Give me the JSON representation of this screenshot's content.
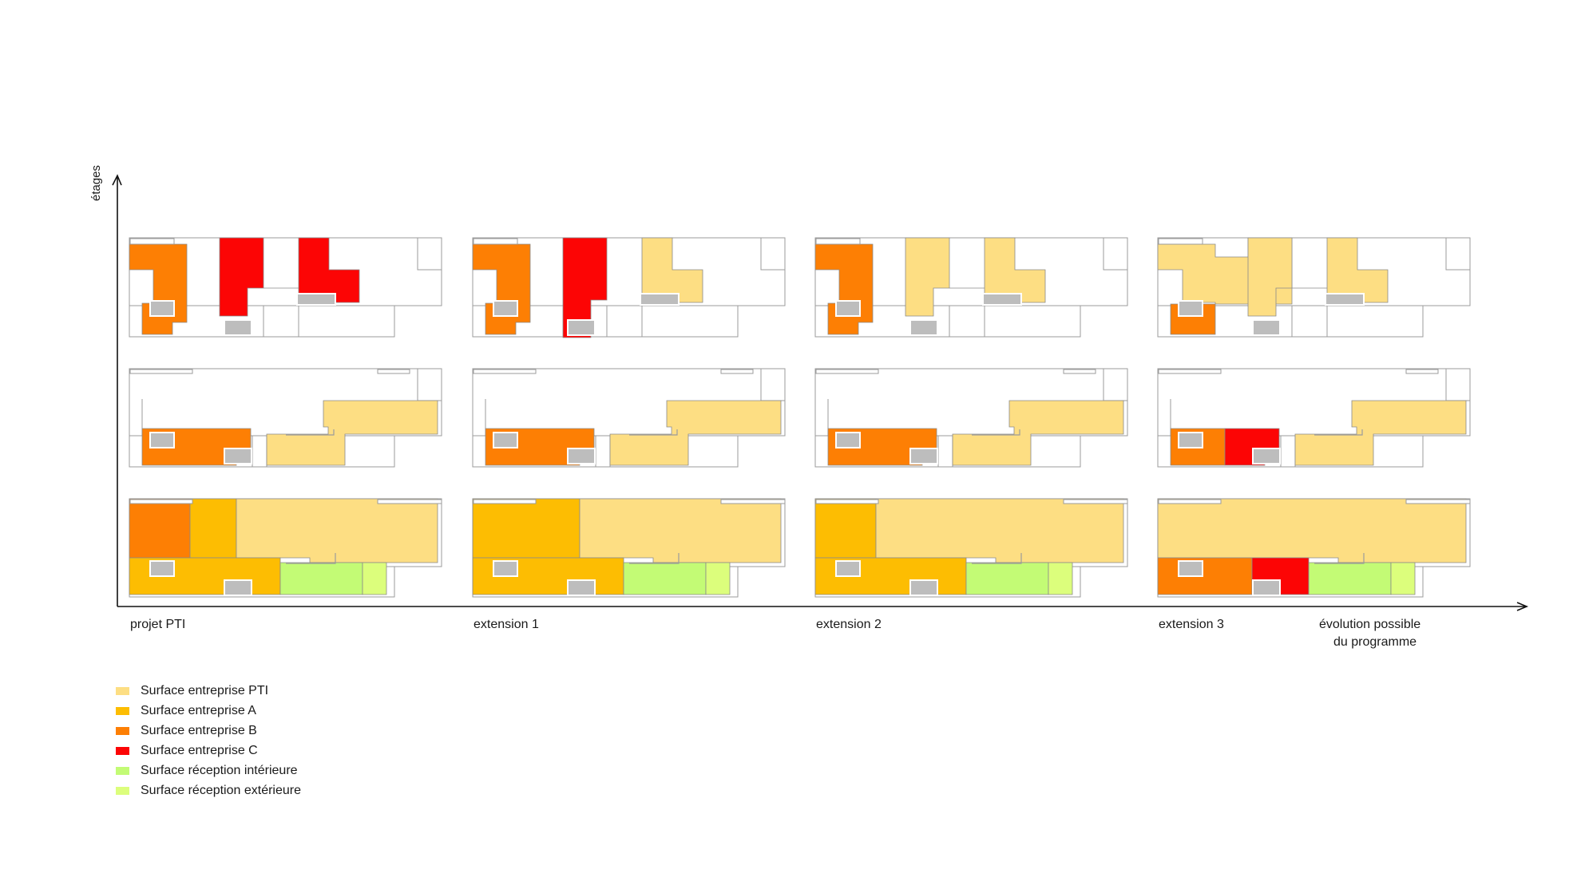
{
  "axis": {
    "y_label": "étages"
  },
  "colors": {
    "pti": "#FDDE83",
    "a": "#FDBD02",
    "b": "#FD7F04",
    "c": "#FC0505",
    "rec_int": "#C3FB75",
    "rec_ext": "#DCFE7C",
    "core": "#BDBDBD",
    "outline": "#9B9B9B"
  },
  "columns": [
    {
      "label": "projet PTI",
      "floors": {
        "top": [
          {
            "shape": "L",
            "color": "b"
          },
          {
            "shape": "topA",
            "color": "c"
          },
          {
            "shape": "topB",
            "color": "c"
          }
        ],
        "mid": [
          {
            "shape": "m1",
            "color": "b"
          },
          {
            "shape": "m2",
            "color": "pti"
          }
        ],
        "bot": [
          {
            "shape": "b1",
            "color": "b"
          },
          {
            "shape": "b2",
            "color": "a"
          },
          {
            "shape": "b3",
            "color": "pti"
          },
          {
            "shape": "b4",
            "color": "a"
          },
          {
            "shape": "b5",
            "color": "rec_int"
          },
          {
            "shape": "b6",
            "color": "rec_ext"
          }
        ]
      }
    },
    {
      "label": "extension 1",
      "floors": {
        "top": [
          {
            "shape": "L",
            "color": "b"
          },
          {
            "shape": "topA2",
            "color": "c"
          },
          {
            "shape": "topB2",
            "color": "pti"
          }
        ],
        "mid": [
          {
            "shape": "m1",
            "color": "b"
          },
          {
            "shape": "m2",
            "color": "pti"
          }
        ],
        "bot": [
          {
            "shape": "b12",
            "color": "a"
          },
          {
            "shape": "b3",
            "color": "pti"
          },
          {
            "shape": "b4",
            "color": "a"
          },
          {
            "shape": "b5",
            "color": "rec_int"
          },
          {
            "shape": "b6",
            "color": "rec_ext"
          }
        ]
      }
    },
    {
      "label": "extension 2",
      "floors": {
        "top": [
          {
            "shape": "L",
            "color": "b"
          },
          {
            "shape": "topA",
            "color": "pti"
          },
          {
            "shape": "topB",
            "color": "pti"
          }
        ],
        "mid": [
          {
            "shape": "m1",
            "color": "b"
          },
          {
            "shape": "m2",
            "color": "pti"
          }
        ],
        "bot": [
          {
            "shape": "b1s",
            "color": "a"
          },
          {
            "shape": "b3w",
            "color": "pti"
          },
          {
            "shape": "b4",
            "color": "a"
          },
          {
            "shape": "b5",
            "color": "rec_int"
          },
          {
            "shape": "b6",
            "color": "rec_ext"
          }
        ]
      }
    },
    {
      "label": "extension 3",
      "floors": {
        "top": [
          {
            "shape": "t3L",
            "color": "pti"
          },
          {
            "shape": "t3small",
            "color": "b"
          },
          {
            "shape": "topA",
            "color": "pti"
          },
          {
            "shape": "topB",
            "color": "pti"
          }
        ],
        "mid": [
          {
            "shape": "m1a",
            "color": "b"
          },
          {
            "shape": "m1b",
            "color": "c"
          },
          {
            "shape": "m2",
            "color": "pti"
          }
        ],
        "bot": [
          {
            "shape": "bfull",
            "color": "pti"
          },
          {
            "shape": "b4a",
            "color": "b"
          },
          {
            "shape": "b4b",
            "color": "c"
          },
          {
            "shape": "b5",
            "color": "rec_int"
          },
          {
            "shape": "b6",
            "color": "rec_ext"
          }
        ]
      }
    }
  ],
  "extra_label": {
    "line1": "évolution possible",
    "line2": "du programme"
  },
  "legend": [
    {
      "label": "Surface entreprise PTI",
      "color": "pti"
    },
    {
      "label": "Surface entreprise A",
      "color": "a"
    },
    {
      "label": "Surface entreprise B",
      "color": "b"
    },
    {
      "label": "Surface entreprise C",
      "color": "c"
    },
    {
      "label": "Surface réception intérieure",
      "color": "rec_int"
    },
    {
      "label": "Surface réception extérieure",
      "color": "rec_ext"
    }
  ]
}
